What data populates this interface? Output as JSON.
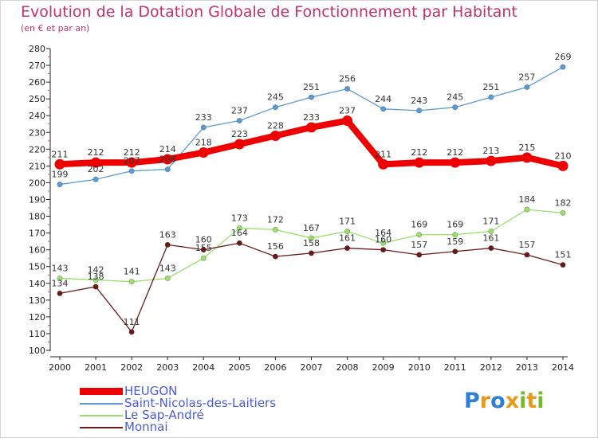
{
  "header": {
    "title": "Evolution de la Dotation Globale de Fonctionnement par Habitant",
    "subtitle": "(en € et par an)"
  },
  "logo": {
    "text": "Proxiti",
    "letters": [
      {
        "ch": "P",
        "color": "#2f7fd4"
      },
      {
        "ch": "r",
        "color": "#e8991c"
      },
      {
        "ch": "o",
        "color": "#2f7fd4"
      },
      {
        "ch": "x",
        "color": "#e8991c"
      },
      {
        "ch": "i",
        "color": "#76b82a"
      },
      {
        "ch": "t",
        "color": "#e8991c"
      },
      {
        "ch": "i",
        "color": "#76b82a"
      }
    ]
  },
  "chart_data": {
    "type": "line",
    "title": "Evolution de la Dotation Globale de Fonctionnement par Habitant",
    "subtitle": "(en € et par an)",
    "x": [
      "2000",
      "2001",
      "2002",
      "2003",
      "2004",
      "2005",
      "2006",
      "2007",
      "2008",
      "2009",
      "2010",
      "2011",
      "2012",
      "2013",
      "2014"
    ],
    "ylim": [
      100,
      280
    ],
    "yticks": [
      "100",
      "110",
      "120",
      "130",
      "140",
      "150",
      "160",
      "170",
      "180",
      "190",
      "200",
      "210",
      "220",
      "230",
      "240",
      "250",
      "260",
      "270",
      "280"
    ],
    "grid": false,
    "legend_position": "bottom-left",
    "series": [
      {
        "name": "HEUGON",
        "color": "#ee0000",
        "emphasis": true,
        "values": [
          211,
          212,
          212,
          214,
          218,
          223,
          228,
          233,
          237,
          211,
          212,
          212,
          213,
          215,
          210
        ],
        "labels": [
          "211",
          "212",
          "212",
          "214",
          "218",
          "223",
          "228",
          "233",
          "237",
          "211",
          "212",
          "212",
          "213",
          "215",
          "210"
        ]
      },
      {
        "name": "Saint-Nicolas-des-Laitiers",
        "color": "#5b9bd5",
        "emphasis": false,
        "values": [
          199,
          202,
          207,
          208,
          233,
          237,
          245,
          251,
          256,
          244,
          243,
          245,
          251,
          257,
          269
        ],
        "labels": [
          "199",
          "202",
          "207",
          "208",
          "233",
          "237",
          "245",
          "251",
          "256",
          "244",
          "243",
          "245",
          "251",
          "257",
          "269"
        ]
      },
      {
        "name": "Le Sap-André",
        "color": "#98e06a",
        "emphasis": false,
        "values": [
          143,
          142,
          141,
          143,
          155,
          173,
          172,
          167,
          171,
          164,
          169,
          169,
          171,
          184,
          182
        ],
        "labels": [
          "143",
          "142",
          "141",
          "143",
          "155",
          "173",
          "172",
          "167",
          "171",
          "164",
          "169",
          "169",
          "171",
          "184",
          "182"
        ]
      },
      {
        "name": "Monnai",
        "color": "#6b1a1a",
        "emphasis": false,
        "values": [
          134,
          138,
          111,
          163,
          160,
          164,
          156,
          158,
          161,
          160,
          157,
          159,
          161,
          157,
          151
        ],
        "labels": [
          "134",
          "138",
          "111",
          "163",
          "160",
          "164",
          "156",
          "158",
          "161",
          "160",
          "157",
          "159",
          "161",
          "157",
          "151"
        ]
      }
    ]
  }
}
